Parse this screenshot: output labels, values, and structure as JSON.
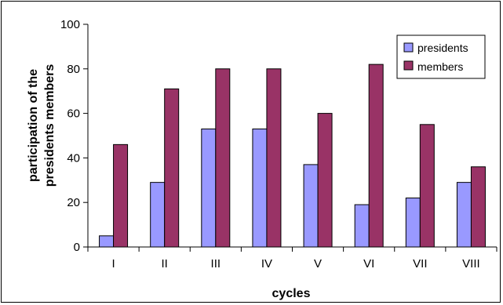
{
  "chart_data": {
    "type": "bar",
    "categories": [
      "I",
      "II",
      "III",
      "IV",
      "V",
      "VI",
      "VII",
      "VIII"
    ],
    "series": [
      {
        "name": "presidents",
        "values": [
          5,
          29,
          53,
          53,
          37,
          19,
          22,
          29
        ],
        "color": "#9999ff"
      },
      {
        "name": "members",
        "values": [
          46,
          71,
          80,
          80,
          60,
          82,
          55,
          36
        ],
        "color": "#993366"
      }
    ],
    "title": "",
    "xlabel": "cycles",
    "ylabel": [
      "participation of the",
      "presidents members"
    ],
    "ylim": [
      0,
      100
    ],
    "yticks": [
      0,
      20,
      40,
      60,
      80,
      100
    ],
    "grid": false,
    "legend_position": "top-right"
  }
}
